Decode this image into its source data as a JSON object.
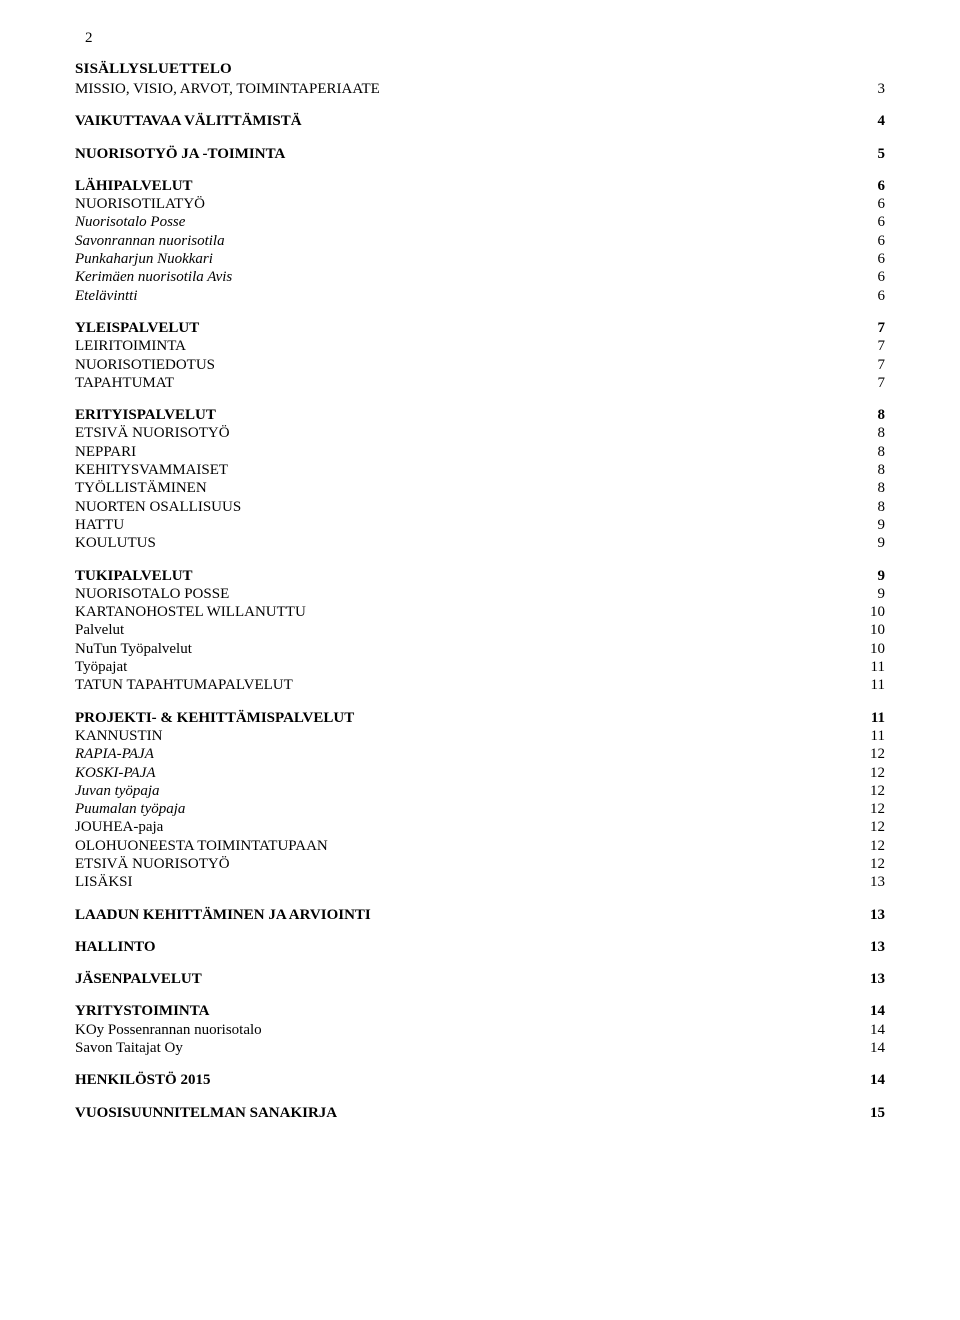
{
  "page_number": "2",
  "title": "SISÄLLYSLUETTELO",
  "entries": [
    {
      "label": "MISSIO, VISIO, ARVOT, TOIMINTAPERIAATE",
      "page": "3",
      "style": "plain",
      "spacer": false
    },
    {
      "label": "VAIKUTTAVAA VÄLITTÄMISTÄ",
      "page": "4",
      "style": "bold",
      "spacer": true
    },
    {
      "label": "NUORISOTYÖ JA -TOIMINTA",
      "page": "5",
      "style": "bold",
      "spacer": true
    },
    {
      "label": "LÄHIPALVELUT",
      "page": "6",
      "style": "bold",
      "spacer": true
    },
    {
      "label": "NUORISOTILATYÖ",
      "page": "6",
      "style": "plain",
      "spacer": false
    },
    {
      "label": "Nuorisotalo Posse",
      "page": "6",
      "style": "italic",
      "spacer": false
    },
    {
      "label": "Savonrannan nuorisotila",
      "page": "6",
      "style": "italic",
      "spacer": false
    },
    {
      "label": "Punkaharjun Nuokkari",
      "page": "6",
      "style": "italic",
      "spacer": false
    },
    {
      "label": "Kerimäen nuorisotila Avis",
      "page": "6",
      "style": "italic",
      "spacer": false
    },
    {
      "label": "Etelävintti",
      "page": "6",
      "style": "italic",
      "spacer": false
    },
    {
      "label": "YLEISPALVELUT",
      "page": "7",
      "style": "bold",
      "spacer": true
    },
    {
      "label": "LEIRITOIMINTA",
      "page": "7",
      "style": "plain",
      "spacer": false
    },
    {
      "label": "NUORISOTIEDOTUS",
      "page": "7",
      "style": "plain",
      "spacer": false
    },
    {
      "label": "TAPAHTUMAT",
      "page": "7",
      "style": "plain",
      "spacer": false
    },
    {
      "label": "ERITYISPALVELUT",
      "page": "8",
      "style": "bold",
      "spacer": true
    },
    {
      "label": "ETSIVÄ NUORISOTYÖ",
      "page": "8",
      "style": "plain",
      "spacer": false
    },
    {
      "label": "NEPPARI",
      "page": "8",
      "style": "plain",
      "spacer": false
    },
    {
      "label": "KEHITYSVAMMAISET",
      "page": "8",
      "style": "plain",
      "spacer": false
    },
    {
      "label": "TYÖLLISTÄMINEN",
      "page": "8",
      "style": "plain",
      "spacer": false
    },
    {
      "label": "NUORTEN OSALLISUUS",
      "page": "8",
      "style": "plain",
      "spacer": false
    },
    {
      "label": "HATTU",
      "page": "9",
      "style": "plain",
      "spacer": false
    },
    {
      "label": "KOULUTUS",
      "page": "9",
      "style": "plain",
      "spacer": false
    },
    {
      "label": "TUKIPALVELUT",
      "page": "9",
      "style": "bold",
      "spacer": true
    },
    {
      "label": "NUORISOTALO POSSE",
      "page": "9",
      "style": "plain",
      "spacer": false
    },
    {
      "label": "KARTANOHOSTEL WILLANUTTU",
      "page": "10",
      "style": "plain",
      "spacer": false
    },
    {
      "label": "Palvelut",
      "page": "10",
      "style": "plain",
      "spacer": false
    },
    {
      "label": "NuTun Työpalvelut",
      "page": "10",
      "style": "plain",
      "spacer": false
    },
    {
      "label": "Työpajat",
      "page": "11",
      "style": "plain",
      "spacer": false
    },
    {
      "label": "TATUN TAPAHTUMAPALVELUT",
      "page": "11",
      "style": "plain",
      "spacer": false
    },
    {
      "label": "PROJEKTI- & KEHITTÄMISPALVELUT",
      "page": "11",
      "style": "bold",
      "spacer": true
    },
    {
      "label": "KANNUSTIN",
      "page": "11",
      "style": "plain",
      "spacer": false
    },
    {
      "label": "RAPIA-PAJA",
      "page": "12",
      "style": "italic",
      "spacer": false
    },
    {
      "label": "KOSKI-PAJA",
      "page": "12",
      "style": "italic",
      "spacer": false
    },
    {
      "label": "Juvan työpaja",
      "page": "12",
      "style": "italic",
      "spacer": false
    },
    {
      "label": "Puumalan työpaja",
      "page": "12",
      "style": "italic",
      "spacer": false
    },
    {
      "label": "JOUHEA-paja",
      "page": "12",
      "style": "plain",
      "spacer": false
    },
    {
      "label": "OLOHUONEESTA TOIMINTATUPAAN",
      "page": "12",
      "style": "plain",
      "spacer": false
    },
    {
      "label": "ETSIVÄ NUORISOTYÖ",
      "page": "12",
      "style": "plain",
      "spacer": false
    },
    {
      "label": "LISÄKSI",
      "page": "13",
      "style": "plain",
      "spacer": false
    },
    {
      "label": "LAADUN KEHITTÄMINEN JA ARVIOINTI",
      "page": "13",
      "style": "bold",
      "spacer": true
    },
    {
      "label": "HALLINTO",
      "page": "13",
      "style": "bold",
      "spacer": true
    },
    {
      "label": "JÄSENPALVELUT",
      "page": "13",
      "style": "bold",
      "spacer": true
    },
    {
      "label": "YRITYSTOIMINTA",
      "page": "14",
      "style": "bold",
      "spacer": true
    },
    {
      "label": "KOy Possenrannan nuorisotalo",
      "page": "14",
      "style": "plain",
      "spacer": false
    },
    {
      "label": "Savon Taitajat Oy",
      "page": "14",
      "style": "plain",
      "spacer": false
    },
    {
      "label": "HENKILÖSTÖ 2015",
      "page": "14",
      "style": "bold",
      "spacer": true
    },
    {
      "label": "VUOSISUUNNITELMAN SANAKIRJA",
      "page": "15",
      "style": "bold",
      "spacer": true
    }
  ]
}
